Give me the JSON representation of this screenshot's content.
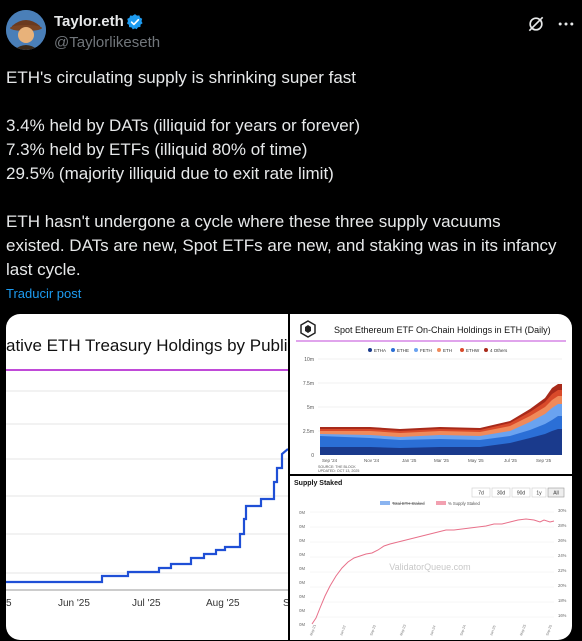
{
  "header": {
    "name": "Taylor.eth",
    "handle": "@Taylorlikeseth"
  },
  "tweet": {
    "line1": "ETH's circulating supply is shrinking super fast",
    "line2": "3.4% held by DATs (illiquid for years or forever)",
    "line3": "7.3% held by ETFs (illiquid 80% of time)",
    "line4": "29.5% (majority illiquid due to exit rate limit)",
    "line5": "ETH hasn't undergone a cycle where these three supply vacuums",
    "line6": "existed. DATs are new, Spot ETFs are new, and staking was in its infancy",
    "line7": "last cycle.",
    "translate": "Traducir post"
  },
  "colors": {
    "accent": "#1d9bf0",
    "text": "#e7e9ea",
    "muted": "#71767b",
    "etf_line": "#c04ad8",
    "treasury_line": "#1f4fd6",
    "staked": "#e8708a"
  },
  "chart_data": [
    {
      "type": "line",
      "title": "ative ETH Treasury Holdings by Public Co",
      "categories": [
        "5",
        "Jun '25",
        "Jul '25",
        "Aug '25",
        "S"
      ],
      "series": [
        {
          "values": [
            0.1,
            0.3,
            0.7,
            1.6,
            3.4
          ]
        }
      ]
    },
    {
      "type": "area",
      "title": "Spot Ethereum ETF On-Chain Holdings in ETH (Daily)",
      "legend": [
        "ETHA",
        "ETHE",
        "FETH",
        "ETH",
        "ETHW",
        "4 Others"
      ],
      "y_ticks": [
        "10m",
        "7.5m",
        "5m",
        "2.5m",
        "0"
      ],
      "x_ticks": [
        "Sep '24",
        "Nov '24",
        "Jan '25",
        "Mar '25",
        "May '25",
        "Jul '25",
        "Sep '25"
      ],
      "source": "SOURCE: THE BLOCK",
      "updated": "UPDATED: OCT 13, 2025",
      "ylim": [
        0,
        10000000
      ]
    },
    {
      "type": "line",
      "title": "Supply Staked",
      "ranges": [
        "7d",
        "30d",
        "90d",
        "1y",
        "All"
      ],
      "selected_range": "All",
      "legend": [
        "Total ETH Staked",
        "% Supply Staked"
      ],
      "watermark": "ValidatorQueue.com",
      "y_left_ticks": [
        "0M",
        "0M",
        "0M",
        "0M",
        "0M",
        "0M",
        "0M",
        "0M",
        "0M"
      ],
      "y_right_ticks": [
        "30%",
        "28%",
        "26%",
        "24%",
        "22%",
        "20%",
        "18%",
        "16%"
      ]
    }
  ]
}
